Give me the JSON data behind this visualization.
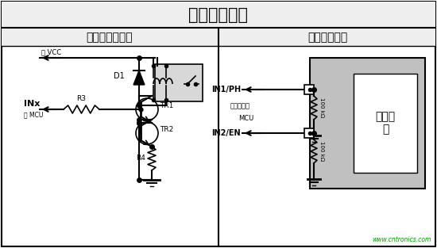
{
  "title": "数字控制接口",
  "left_title": "继电器解决方案",
  "right_title": "固态解决方案",
  "watermark": "www.cntronics.com",
  "bg_color": "#ffffff",
  "label_vcc": "至 VCC",
  "label_mcu_left": "至 MCU",
  "label_inx": "INx",
  "label_d1": "D1",
  "label_r3": "R3",
  "label_r4": "R4",
  "label_tr1": "TR1",
  "label_tr2": "TR2",
  "label_in1": "IN1/PH",
  "label_in2": "IN2/EN",
  "label_direct_line1": "直接连接到",
  "label_direct_line2": "MCU",
  "label_100k1": "100 kΩ",
  "label_100k2": "100 kΩ",
  "digital_core_text": "数字内\n核"
}
